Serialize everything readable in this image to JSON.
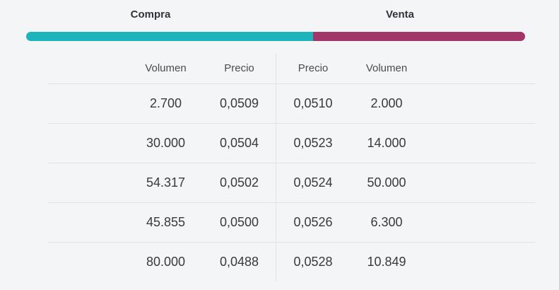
{
  "header": {
    "buy_label": "Compra",
    "sell_label": "Venta"
  },
  "ratio_bar": {
    "buy_percent": 57.5,
    "sell_percent": 42.5,
    "buy_color": "#1db4bc",
    "sell_color": "#a13669"
  },
  "table": {
    "buy_columns": [
      "Volumen",
      "Precio"
    ],
    "sell_columns": [
      "Precio",
      "Volumen"
    ],
    "rows": [
      {
        "buy_volume": "2.700",
        "buy_price": "0,0509",
        "sell_price": "0,0510",
        "sell_volume": "2.000"
      },
      {
        "buy_volume": "30.000",
        "buy_price": "0,0504",
        "sell_price": "0,0523",
        "sell_volume": "14.000"
      },
      {
        "buy_volume": "54.317",
        "buy_price": "0,0502",
        "sell_price": "0,0524",
        "sell_volume": "50.000"
      },
      {
        "buy_volume": "45.855",
        "buy_price": "0,0500",
        "sell_price": "0,0526",
        "sell_volume": "6.300"
      },
      {
        "buy_volume": "80.000",
        "buy_price": "0,0488",
        "sell_price": "0,0528",
        "sell_volume": "10.849"
      }
    ]
  }
}
